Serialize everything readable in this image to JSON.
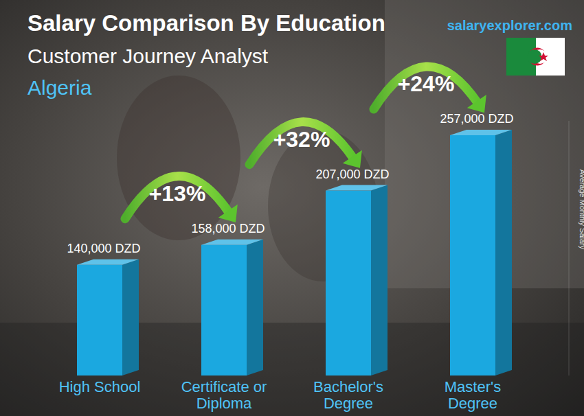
{
  "chart_data": {
    "type": "bar",
    "title": "Salary Comparison By Education",
    "subtitle": "Customer Journey Analyst",
    "location": "Algeria",
    "source": "salaryexplorer.com",
    "y_label": "Average Monthly Salary",
    "categories": [
      "High School",
      "Certificate or Diploma",
      "Bachelor's Degree",
      "Master's Degree"
    ],
    "values": [
      140000,
      158000,
      207000,
      257000
    ],
    "value_labels": [
      "140,000 DZD",
      "158,000 DZD",
      "207,000 DZD",
      "257,000 DZD"
    ],
    "annotations": [
      "+13%",
      "+32%",
      "+24%"
    ],
    "color": "#1ba8e0",
    "ylim": [
      40000,
      270000
    ],
    "data_labels": true,
    "tick_labels": "x",
    "grid": false
  }
}
